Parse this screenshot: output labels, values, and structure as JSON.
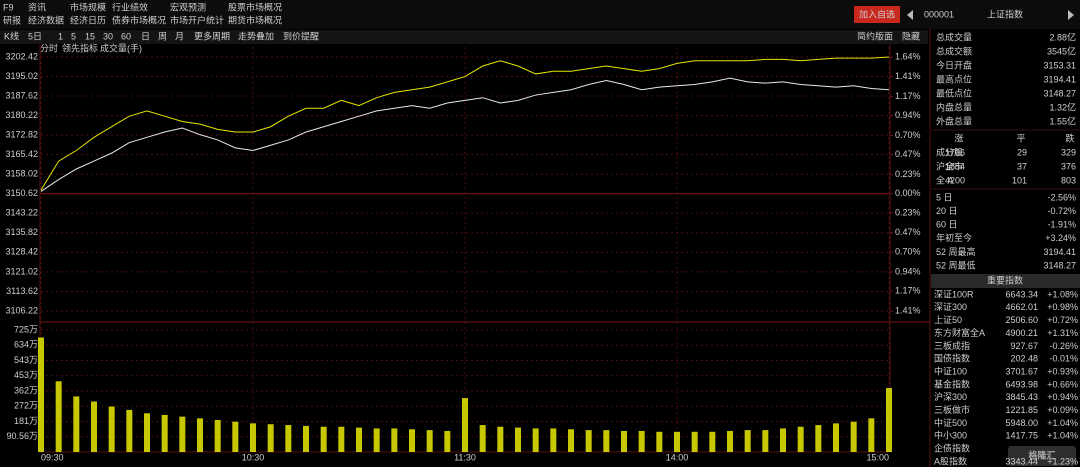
{
  "menu": {
    "rows": [
      [
        "F9",
        "资讯",
        "市场规模",
        "行业绩效",
        "宏观预测",
        "股票市场概况"
      ],
      [
        "研报",
        "经济数据",
        "经济日历",
        "债券市场概况",
        "市场开户统计",
        "期货市场概况"
      ]
    ]
  },
  "header": {
    "button": "加入自选",
    "code": "000001",
    "name": "上证指数"
  },
  "toolbar": {
    "items": [
      "K线",
      "5日",
      "1",
      "5",
      "15",
      "30",
      "60",
      "日",
      "周",
      "月",
      "更多周期",
      "走势叠加",
      "到价提醒"
    ],
    "right": [
      "简约版面",
      "隐藏"
    ]
  },
  "indicator_tabs": [
    "分时"
  ],
  "chart_data": [
    {
      "type": "line",
      "x": [
        0,
        5,
        10,
        15,
        20,
        25,
        30,
        35,
        40,
        45,
        50,
        55,
        60,
        65,
        70,
        75,
        80,
        85,
        90,
        95,
        100,
        105,
        110,
        115,
        120,
        125,
        130,
        135,
        140,
        145,
        150,
        155,
        160,
        165,
        170,
        175,
        180,
        185,
        190,
        195,
        200,
        205,
        210,
        215,
        220,
        225,
        230,
        235,
        240
      ],
      "xlim": [
        0,
        240
      ],
      "series": [
        {
          "color": "#e8e8e8",
          "values": [
            3151.5,
            3156,
            3160,
            3163,
            3166,
            3170,
            3172,
            3174,
            3175.5,
            3173,
            3171,
            3168,
            3167,
            3169,
            3171,
            3174,
            3176,
            3178,
            3180,
            3182,
            3183,
            3184,
            3183,
            3185,
            3186,
            3187,
            3185,
            3186,
            3188,
            3189,
            3190,
            3192,
            3193.5,
            3192,
            3190,
            3191,
            3191.5,
            3192,
            3193,
            3194.4,
            3193,
            3192.5,
            3193,
            3192,
            3191.5,
            3191,
            3191.5,
            3190.5,
            3190
          ]
        },
        {
          "name": "领先指标",
          "color": "#e6e600",
          "values": [
            3152,
            3163,
            3167,
            3172,
            3176,
            3180,
            3182,
            3180,
            3178,
            3177,
            3175,
            3174,
            3174,
            3176,
            3180,
            3183,
            3183,
            3186,
            3184,
            3187,
            3189,
            3190,
            3191,
            3193,
            3195,
            3199,
            3201,
            3199,
            3196,
            3197,
            3197,
            3198,
            3199,
            3198,
            3197,
            3198,
            3200,
            3201,
            3201,
            3201,
            3201,
            3201.5,
            3201.5,
            3201,
            3201.5,
            3202,
            3202,
            3202,
            3202.4
          ]
        }
      ],
      "ylim": [
        3102.05,
        3206.2
      ],
      "yticks": [
        3202.42,
        3195.02,
        3187.62,
        3180.22,
        3172.82,
        3165.42,
        3158.02,
        3150.62,
        3143.22,
        3135.82,
        3128.42,
        3121.02,
        3113.62,
        3106.22
      ],
      "y2lim": [
        -1.5416,
        1.764
      ],
      "y2ticks": [
        {
          "value": 1.64,
          "label": "1.64%"
        },
        {
          "value": 1.41,
          "label": "1.41%"
        },
        {
          "value": 1.17,
          "label": "1.17%"
        },
        {
          "value": 0.94,
          "label": "0.94%"
        },
        {
          "value": 0.7,
          "label": "0.70%"
        },
        {
          "value": 0.47,
          "label": "0.47%"
        },
        {
          "value": 0.23,
          "label": "0.23%"
        },
        {
          "value": 0,
          "label": "0.00%"
        },
        {
          "value": -0.23,
          "label": "0.23%"
        },
        {
          "value": -0.47,
          "label": "0.47%"
        },
        {
          "value": -0.7,
          "label": "0.70%"
        },
        {
          "value": -0.94,
          "label": "0.94%"
        },
        {
          "value": -1.17,
          "label": "1.17%"
        },
        {
          "value": -1.41,
          "label": "1.41%"
        }
      ],
      "grid": true,
      "up_color": "#ff3b3b",
      "down_color": "#1ee61e",
      "flat_color": "#dddddd"
    },
    {
      "type": "bar",
      "title": "成交量(手)",
      "x": [
        0,
        5,
        10,
        15,
        20,
        25,
        30,
        35,
        40,
        45,
        50,
        55,
        60,
        65,
        70,
        75,
        80,
        85,
        90,
        95,
        100,
        105,
        110,
        115,
        120,
        125,
        130,
        135,
        140,
        145,
        150,
        155,
        160,
        165,
        170,
        175,
        180,
        185,
        190,
        195,
        200,
        205,
        210,
        215,
        220,
        225,
        230,
        235,
        240
      ],
      "values": [
        680,
        420,
        330,
        300,
        270,
        250,
        230,
        220,
        210,
        200,
        190,
        180,
        170,
        165,
        160,
        155,
        150,
        150,
        145,
        140,
        140,
        135,
        130,
        125,
        320,
        160,
        150,
        145,
        140,
        140,
        135,
        130,
        130,
        125,
        125,
        120,
        120,
        120,
        120,
        125,
        130,
        130,
        140,
        150,
        160,
        170,
        180,
        200,
        380
      ],
      "color": "#c8c800",
      "xlim": [
        0,
        240
      ],
      "xticks": [
        {
          "value": 0,
          "label": "09:30"
        },
        {
          "value": 60,
          "label": "10:30"
        },
        {
          "value": 120,
          "label": "11:30"
        },
        {
          "value": 180,
          "label": "14:00"
        },
        {
          "value": 240,
          "label": "15:00"
        }
      ],
      "ylim": [
        0,
        772
      ],
      "yticks": [
        {
          "value": 725,
          "label": "725万"
        },
        {
          "value": 634,
          "label": "634万"
        },
        {
          "value": 543,
          "label": "543万"
        },
        {
          "value": 453,
          "label": "453万"
        },
        {
          "value": 362,
          "label": "362万"
        },
        {
          "value": 272,
          "label": "272万"
        },
        {
          "value": 181,
          "label": "181万"
        },
        {
          "value": 90.56,
          "label": "90.56万"
        }
      ],
      "grid": true
    }
  ],
  "summary": [
    {
      "label": "总成交量",
      "value": "2.88亿",
      "color": "#e0e0e0"
    },
    {
      "label": "总成交额",
      "value": "3545亿",
      "color": "#38c8ff"
    },
    {
      "label": "今日开盘",
      "value": "3153.31",
      "color": "#ff3b3b"
    },
    {
      "label": "最高点位",
      "value": "3194.41",
      "color": "#ff3b3b"
    },
    {
      "label": "最低点位",
      "value": "3148.27",
      "color": "#1ee61e"
    },
    {
      "label": "内盘总量",
      "value": "1.32亿",
      "color": "#1ee61e"
    },
    {
      "label": "外盘总量",
      "value": "1.55亿",
      "color": "#ff3b3b"
    }
  ],
  "breadth": {
    "header": [
      "涨",
      "平",
      "跌"
    ],
    "rows": [
      [
        "成分股",
        "1706",
        "29",
        "329"
      ],
      [
        "沪全市",
        "1854",
        "37",
        "376"
      ],
      [
        "全 A",
        "4200",
        "101",
        "803"
      ]
    ]
  },
  "returns": [
    {
      "label": "5 日",
      "value": "-2.56%",
      "color": "#1ee61e"
    },
    {
      "label": "20 日",
      "value": "-0.72%",
      "color": "#1ee61e"
    },
    {
      "label": "60 日",
      "value": "-1.91%",
      "color": "#1ee61e"
    },
    {
      "label": "年初至今",
      "value": "+3.24%",
      "color": "#ff3b3b"
    },
    {
      "label": "52 周最高",
      "value": "3194.41",
      "color": "#ff3b3b"
    },
    {
      "label": "52 周最低",
      "value": "3148.27",
      "color": "#1ee61e"
    }
  ],
  "indices": {
    "title": "重要指数",
    "rows": [
      [
        "深证100R",
        "6643.34",
        "+1.08%"
      ],
      [
        "深证300",
        "4662.01",
        "+0.98%"
      ],
      [
        "上证50",
        "2506.60",
        "+0.72%"
      ],
      [
        "东方财富全A",
        "4900.21",
        "+1.31%"
      ],
      [
        "三板成指",
        "927.67",
        "-0.26%"
      ],
      [
        "国债指数",
        "202.48",
        "-0.01%"
      ],
      [
        "中证100",
        "3701.67",
        "+0.93%"
      ],
      [
        "基金指数",
        "6493.98",
        "+0.66%"
      ],
      [
        "沪深300",
        "3845.43",
        "+0.94%"
      ],
      [
        "三板做市",
        "1221.85",
        "+0.09%"
      ],
      [
        "中证500",
        "5948.00",
        "+1.04%"
      ],
      [
        "中小300",
        "1417.75",
        "+1.04%"
      ],
      [
        "企债指数"
      ],
      [
        "A股指数",
        "3343.44",
        "+1.23%"
      ]
    ]
  },
  "watermark": "格隆汇"
}
